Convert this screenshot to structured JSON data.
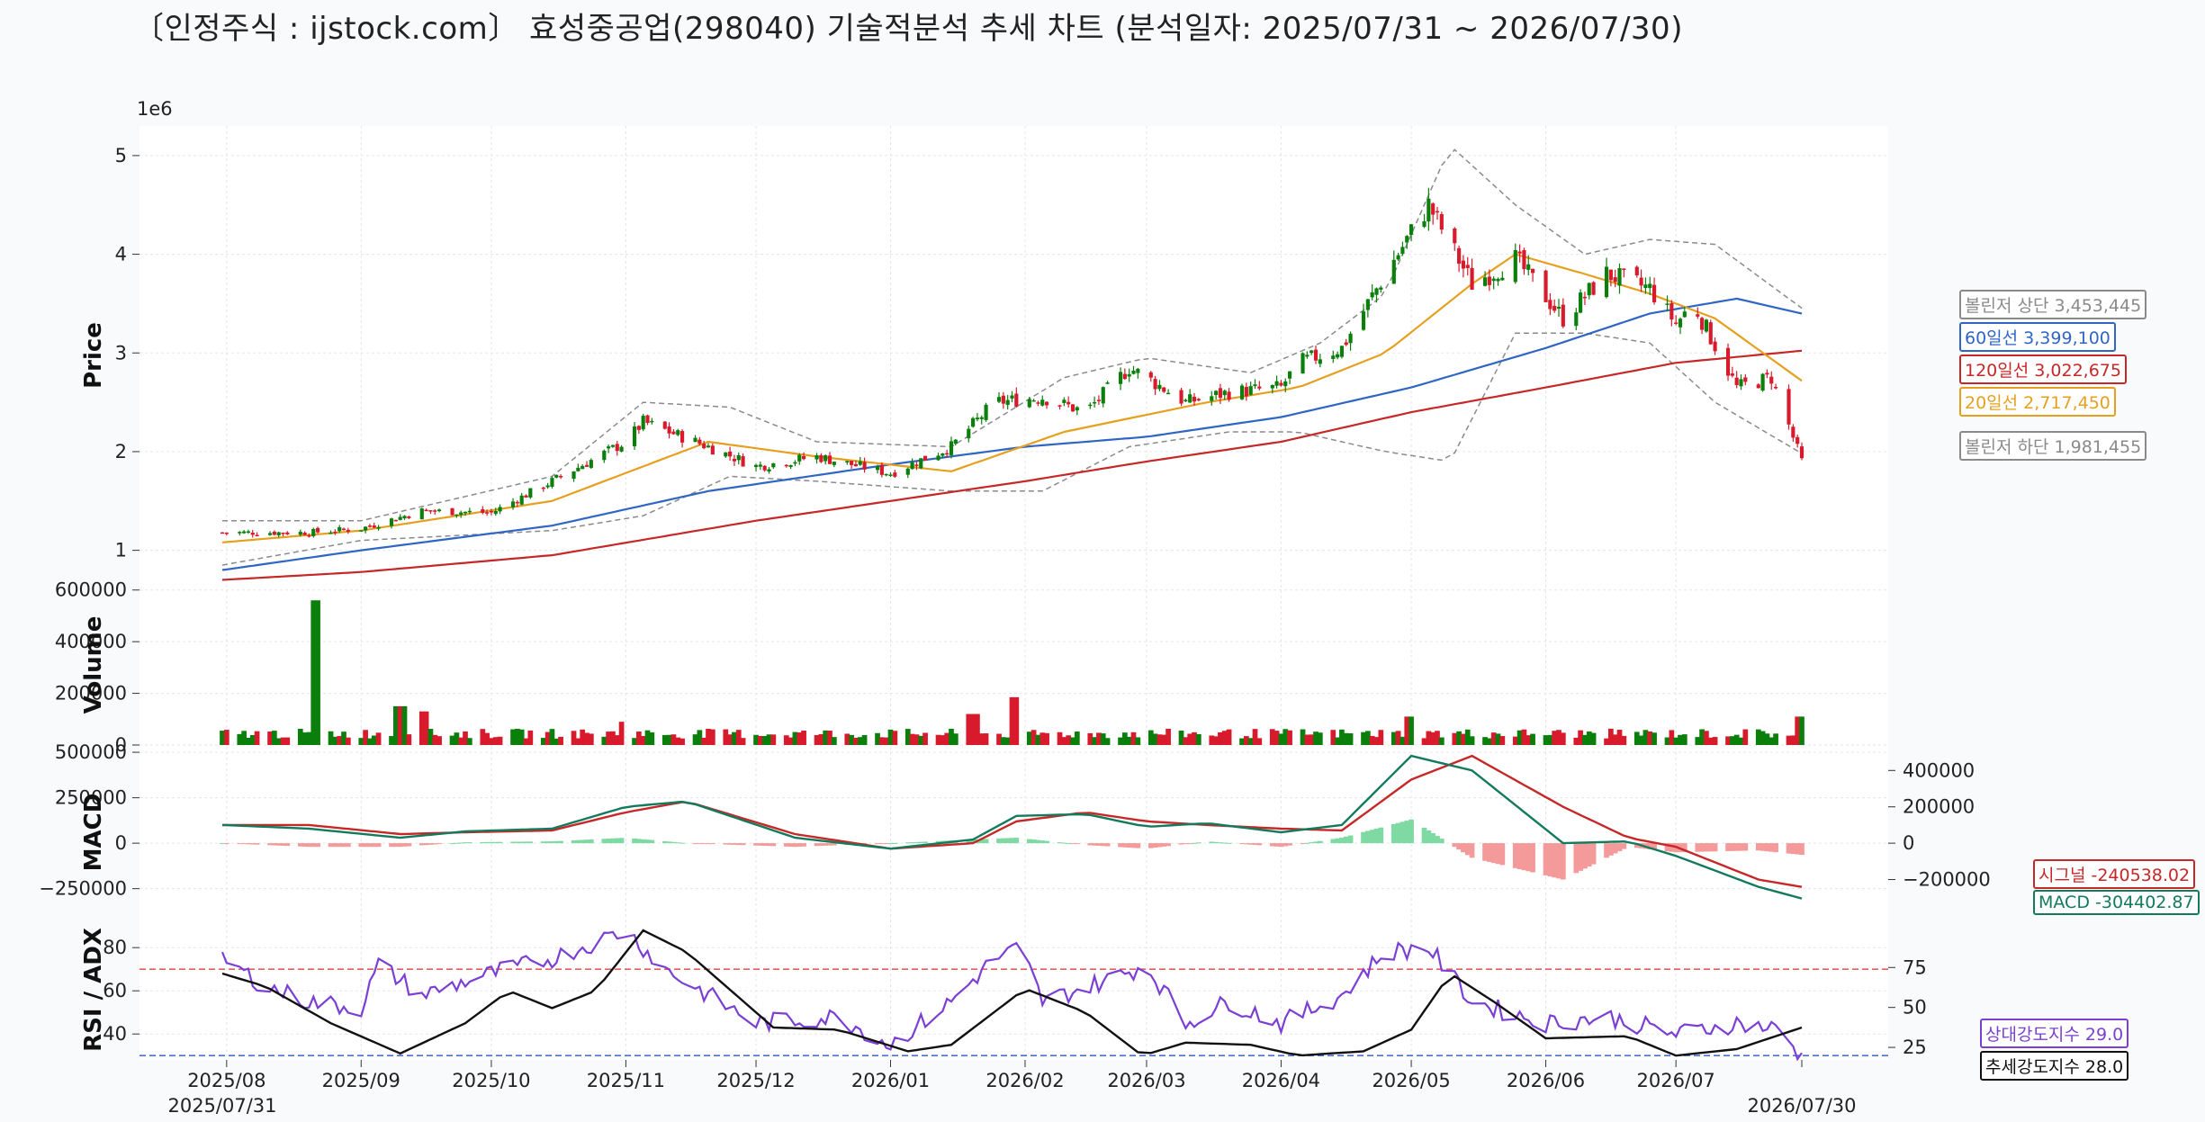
{
  "title": "〔인정주식 : ijstock.com〕 효성중공업(298040) 기술적분석 추세 차트 (분석일자: 2025/07/31 ~ 2026/07/30)",
  "colors": {
    "up": "#0b7f0b",
    "down": "#d81b2c",
    "ma20": "#e6a020",
    "ma60": "#2f66c4",
    "ma120": "#c62828",
    "bb": "#8a8a8a",
    "macd": "#137a5c",
    "signal": "#c62828",
    "hist_pos": "#7fd9a2",
    "hist_neg": "#f59a9a",
    "rsi": "#7b3fd4",
    "adx": "#111111",
    "rsi_hi": "#e06060",
    "rsi_lo": "#4a72c8"
  },
  "chart_data": [
    {
      "type": "candlestick",
      "ylabel": "Price",
      "offset_label": "1e6",
      "yticks": [
        "1",
        "2",
        "3",
        "4",
        "5"
      ],
      "ylim": [
        650000,
        5300000
      ],
      "x_start": "2025-07-31",
      "x_end": "2026-07-30",
      "xticks": [
        {
          "label": "2025/08",
          "date": "2025-08-01"
        },
        {
          "label": "2025/09",
          "date": "2025-09-01"
        },
        {
          "label": "2025/10",
          "date": "2025-10-01"
        },
        {
          "label": "2025/11",
          "date": "2025-11-01"
        },
        {
          "label": "2025/12",
          "date": "2025-12-01"
        },
        {
          "label": "2026/01",
          "date": "2026-01-01"
        },
        {
          "label": "2026/02",
          "date": "2026-02-01"
        },
        {
          "label": "2026/03",
          "date": "2026-03-01"
        },
        {
          "label": "2026/04",
          "date": "2026-04-01"
        },
        {
          "label": "2026/05",
          "date": "2026-05-01"
        },
        {
          "label": "2026/06",
          "date": "2026-06-01"
        },
        {
          "label": "2026/07",
          "date": "2026-07-01"
        }
      ],
      "start_label": "2025/07/31",
      "end_label": "2026/07/30",
      "close_anchors": [
        [
          "2025-07-31",
          1180000
        ],
        [
          "2025-08-20",
          1180000
        ],
        [
          "2025-09-01",
          1220000
        ],
        [
          "2025-09-15",
          1400000
        ],
        [
          "2025-10-01",
          1380000
        ],
        [
          "2025-10-15",
          1700000
        ],
        [
          "2025-11-01",
          2100000
        ],
        [
          "2025-11-05",
          2300000
        ],
        [
          "2025-11-20",
          2050000
        ],
        [
          "2025-12-01",
          1850000
        ],
        [
          "2025-12-15",
          1950000
        ],
        [
          "2026-01-01",
          1780000
        ],
        [
          "2026-01-15",
          2050000
        ],
        [
          "2026-01-25",
          2500000
        ],
        [
          "2026-02-05",
          2550000
        ],
        [
          "2026-02-15",
          2400000
        ],
        [
          "2026-02-25",
          2850000
        ],
        [
          "2026-03-01",
          2750000
        ],
        [
          "2026-03-10",
          2500000
        ],
        [
          "2026-03-20",
          2600000
        ],
        [
          "2026-04-01",
          2650000
        ],
        [
          "2026-04-05",
          2900000
        ],
        [
          "2026-04-15",
          3050000
        ],
        [
          "2026-04-25",
          3800000
        ],
        [
          "2026-05-05",
          4500000
        ],
        [
          "2026-05-15",
          3700000
        ],
        [
          "2026-05-25",
          3950000
        ],
        [
          "2026-06-05",
          3350000
        ],
        [
          "2026-06-15",
          3800000
        ],
        [
          "2026-06-25",
          3650000
        ],
        [
          "2026-07-01",
          3300000
        ],
        [
          "2026-07-05",
          3500000
        ],
        [
          "2026-07-15",
          2650000
        ],
        [
          "2026-07-23",
          2750000
        ],
        [
          "2026-07-30",
          1900000
        ]
      ],
      "overlays": {
        "ma20": [
          [
            "2025-07-31",
            1080000
          ],
          [
            "2025-09-01",
            1200000
          ],
          [
            "2025-10-15",
            1500000
          ],
          [
            "2025-11-20",
            2100000
          ],
          [
            "2025-12-15",
            1950000
          ],
          [
            "2026-01-15",
            1800000
          ],
          [
            "2026-02-10",
            2200000
          ],
          [
            "2026-03-15",
            2500000
          ],
          [
            "2026-04-05",
            2650000
          ],
          [
            "2026-04-25",
            3000000
          ],
          [
            "2026-05-15",
            3700000
          ],
          [
            "2026-05-25",
            4000000
          ],
          [
            "2026-06-10",
            3800000
          ],
          [
            "2026-06-25",
            3600000
          ],
          [
            "2026-07-10",
            3350000
          ],
          [
            "2026-07-30",
            2717450
          ]
        ],
        "ma60": [
          [
            "2025-07-31",
            800000
          ],
          [
            "2025-09-01",
            1000000
          ],
          [
            "2025-10-15",
            1250000
          ],
          [
            "2025-11-20",
            1600000
          ],
          [
            "2026-01-01",
            1870000
          ],
          [
            "2026-02-01",
            2050000
          ],
          [
            "2026-03-01",
            2150000
          ],
          [
            "2026-04-01",
            2350000
          ],
          [
            "2026-05-01",
            2650000
          ],
          [
            "2026-06-01",
            3050000
          ],
          [
            "2026-06-25",
            3400000
          ],
          [
            "2026-07-15",
            3550000
          ],
          [
            "2026-07-30",
            3399100
          ]
        ],
        "ma120": [
          [
            "2025-07-31",
            700000
          ],
          [
            "2025-09-01",
            780000
          ],
          [
            "2025-10-15",
            950000
          ],
          [
            "2025-12-01",
            1300000
          ],
          [
            "2026-01-01",
            1500000
          ],
          [
            "2026-02-01",
            1700000
          ],
          [
            "2026-03-01",
            1900000
          ],
          [
            "2026-04-01",
            2100000
          ],
          [
            "2026-05-01",
            2400000
          ],
          [
            "2026-06-01",
            2650000
          ],
          [
            "2026-07-01",
            2900000
          ],
          [
            "2026-07-30",
            3022675
          ]
        ],
        "bb_upper": [
          [
            "2025-07-31",
            1300000
          ],
          [
            "2025-09-01",
            1300000
          ],
          [
            "2025-10-15",
            1750000
          ],
          [
            "2025-11-05",
            2500000
          ],
          [
            "2025-11-25",
            2450000
          ],
          [
            "2025-12-15",
            2100000
          ],
          [
            "2026-01-15",
            2050000
          ],
          [
            "2026-02-10",
            2750000
          ],
          [
            "2026-03-01",
            2950000
          ],
          [
            "2026-03-25",
            2800000
          ],
          [
            "2026-04-10",
            3100000
          ],
          [
            "2026-04-25",
            3600000
          ],
          [
            "2026-05-10",
            5100000
          ],
          [
            "2026-05-25",
            4500000
          ],
          [
            "2026-06-10",
            4000000
          ],
          [
            "2026-06-25",
            4150000
          ],
          [
            "2026-07-10",
            4100000
          ],
          [
            "2026-07-30",
            3453445
          ]
        ],
        "bb_lower": [
          [
            "2025-07-31",
            850000
          ],
          [
            "2025-09-01",
            1100000
          ],
          [
            "2025-10-15",
            1200000
          ],
          [
            "2025-11-05",
            1350000
          ],
          [
            "2025-11-25",
            1750000
          ],
          [
            "2025-12-15",
            1700000
          ],
          [
            "2026-01-15",
            1600000
          ],
          [
            "2026-02-05",
            1600000
          ],
          [
            "2026-02-25",
            2050000
          ],
          [
            "2026-03-20",
            2200000
          ],
          [
            "2026-04-05",
            2200000
          ],
          [
            "2026-04-25",
            2000000
          ],
          [
            "2026-05-10",
            1900000
          ],
          [
            "2026-05-25",
            3200000
          ],
          [
            "2026-06-10",
            3200000
          ],
          [
            "2026-06-25",
            3100000
          ],
          [
            "2026-07-10",
            2500000
          ],
          [
            "2026-07-30",
            1981455
          ]
        ]
      }
    },
    {
      "type": "bar",
      "ylabel": "Volume",
      "yticks": [
        "0",
        "200000",
        "400000",
        "600000"
      ],
      "ylim": [
        0,
        620000
      ],
      "base_volume": 55000,
      "spikes": [
        [
          "2025-08-22",
          560000
        ],
        [
          "2025-09-10",
          150000
        ],
        [
          "2025-09-15",
          130000
        ],
        [
          "2025-11-01",
          90000
        ],
        [
          "2026-01-20",
          120000
        ],
        [
          "2026-01-30",
          185000
        ],
        [
          "2026-05-01",
          110000
        ],
        [
          "2026-07-30",
          110000
        ]
      ]
    },
    {
      "type": "line",
      "ylabel": "MACD",
      "yticks": [
        "−250000",
        "0",
        "250000",
        "500000"
      ],
      "yticks_right": [
        "−200000",
        "0",
        "200000",
        "400000"
      ],
      "ylim": [
        -420000,
        540000
      ],
      "macd": [
        [
          "2025-07-31",
          100000
        ],
        [
          "2025-08-20",
          80000
        ],
        [
          "2025-09-10",
          30000
        ],
        [
          "2025-09-25",
          65000
        ],
        [
          "2025-10-15",
          80000
        ],
        [
          "2025-11-01",
          200000
        ],
        [
          "2025-11-15",
          230000
        ],
        [
          "2025-12-10",
          30000
        ],
        [
          "2026-01-01",
          -30000
        ],
        [
          "2026-01-20",
          20000
        ],
        [
          "2026-01-30",
          150000
        ],
        [
          "2026-02-15",
          160000
        ],
        [
          "2026-03-01",
          90000
        ],
        [
          "2026-03-15",
          110000
        ],
        [
          "2026-04-01",
          60000
        ],
        [
          "2026-04-15",
          100000
        ],
        [
          "2026-05-01",
          480000
        ],
        [
          "2026-05-15",
          400000
        ],
        [
          "2026-06-05",
          0
        ],
        [
          "2026-06-20",
          10000
        ],
        [
          "2026-07-01",
          -70000
        ],
        [
          "2026-07-20",
          -240000
        ],
        [
          "2026-07-30",
          -304402
        ]
      ],
      "signal": [
        [
          "2025-07-31",
          100000
        ],
        [
          "2025-08-20",
          100000
        ],
        [
          "2025-09-10",
          50000
        ],
        [
          "2025-09-25",
          60000
        ],
        [
          "2025-10-15",
          70000
        ],
        [
          "2025-11-01",
          170000
        ],
        [
          "2025-11-15",
          230000
        ],
        [
          "2025-12-10",
          50000
        ],
        [
          "2026-01-01",
          -30000
        ],
        [
          "2026-01-20",
          0
        ],
        [
          "2026-01-30",
          120000
        ],
        [
          "2026-02-15",
          170000
        ],
        [
          "2026-03-01",
          120000
        ],
        [
          "2026-03-15",
          100000
        ],
        [
          "2026-04-01",
          80000
        ],
        [
          "2026-04-15",
          70000
        ],
        [
          "2026-05-01",
          350000
        ],
        [
          "2026-05-15",
          480000
        ],
        [
          "2026-06-05",
          200000
        ],
        [
          "2026-06-20",
          30000
        ],
        [
          "2026-07-01",
          -20000
        ],
        [
          "2026-07-20",
          -200000
        ],
        [
          "2026-07-30",
          -240538
        ]
      ],
      "labels": {
        "signal": "시그널 -240538.02",
        "macd": "MACD -304402.87"
      }
    },
    {
      "type": "line",
      "ylabel": "RSI / ADX",
      "yticks": [
        "40",
        "60",
        "80"
      ],
      "yticks_right": [
        "25",
        "50",
        "75"
      ],
      "ylim": [
        28,
        93
      ],
      "overbought": 70,
      "oversold": 30,
      "rsi": [
        [
          "2025-07-31",
          75
        ],
        [
          "2025-08-10",
          62
        ],
        [
          "2025-08-20",
          55
        ],
        [
          "2025-09-01",
          52
        ],
        [
          "2025-09-05",
          72
        ],
        [
          "2025-09-15",
          58
        ],
        [
          "2025-10-01",
          68
        ],
        [
          "2025-10-15",
          75
        ],
        [
          "2025-11-01",
          88
        ],
        [
          "2025-11-10",
          70
        ],
        [
          "2025-11-20",
          58
        ],
        [
          "2025-12-01",
          45
        ],
        [
          "2025-12-20",
          48
        ],
        [
          "2026-01-01",
          35
        ],
        [
          "2026-01-15",
          55
        ],
        [
          "2026-01-25",
          75
        ],
        [
          "2026-01-31",
          80
        ],
        [
          "2026-02-05",
          55
        ],
        [
          "2026-02-20",
          65
        ],
        [
          "2026-03-01",
          72
        ],
        [
          "2026-03-10",
          45
        ],
        [
          "2026-03-20",
          55
        ],
        [
          "2026-04-01",
          45
        ],
        [
          "2026-04-15",
          58
        ],
        [
          "2026-04-25",
          78
        ],
        [
          "2026-05-05",
          80
        ],
        [
          "2026-05-15",
          55
        ],
        [
          "2026-06-01",
          45
        ],
        [
          "2026-06-15",
          48
        ],
        [
          "2026-07-01",
          40
        ],
        [
          "2026-07-15",
          45
        ],
        [
          "2026-07-25",
          42
        ],
        [
          "2026-07-30",
          29
        ]
      ],
      "adx": [
        [
          "2025-07-31",
          68
        ],
        [
          "2025-08-10",
          62
        ],
        [
          "2025-08-25",
          45
        ],
        [
          "2025-09-10",
          31
        ],
        [
          "2025-09-25",
          45
        ],
        [
          "2025-10-05",
          60
        ],
        [
          "2025-10-15",
          52
        ],
        [
          "2025-10-25",
          60
        ],
        [
          "2025-11-05",
          88
        ],
        [
          "2025-11-15",
          78
        ],
        [
          "2025-12-05",
          43
        ],
        [
          "2025-12-20",
          42
        ],
        [
          "2026-01-05",
          32
        ],
        [
          "2026-01-15",
          35
        ],
        [
          "2026-02-01",
          61
        ],
        [
          "2026-02-15",
          50
        ],
        [
          "2026-02-28",
          30
        ],
        [
          "2026-03-10",
          36
        ],
        [
          "2026-03-25",
          35
        ],
        [
          "2026-04-05",
          30
        ],
        [
          "2026-04-20",
          32
        ],
        [
          "2026-05-01",
          42
        ],
        [
          "2026-05-10",
          68
        ],
        [
          "2026-05-20",
          55
        ],
        [
          "2026-06-01",
          38
        ],
        [
          "2026-06-20",
          39
        ],
        [
          "2026-07-01",
          30
        ],
        [
          "2026-07-15",
          33
        ],
        [
          "2026-07-30",
          43
        ]
      ],
      "labels": {
        "rsi": "상대강도지수 29.0",
        "adx": "추세강도지수 28.0"
      }
    }
  ],
  "right_labels": {
    "bb_upper": "볼린저 상단 3,453,445",
    "ma60": "60일선 3,399,100",
    "ma120": "120일선 3,022,675",
    "ma20": "20일선 2,717,450",
    "bb_lower": "볼린저 하단 1,981,455"
  }
}
